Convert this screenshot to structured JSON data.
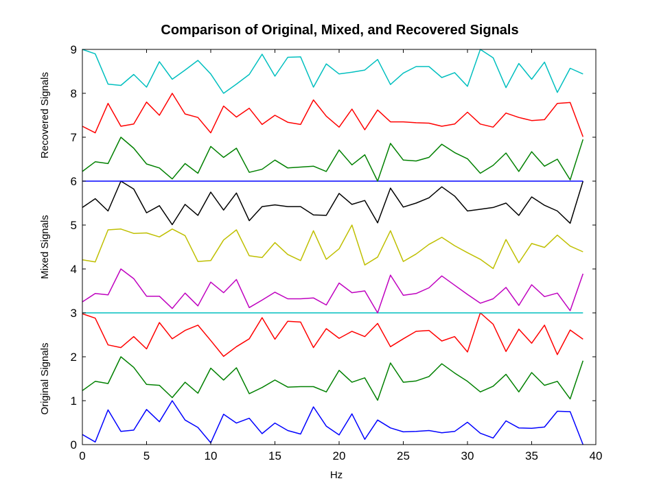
{
  "chart_data": {
    "type": "line",
    "title": "Comparison of Original, Mixed, and Recovered Signals",
    "xlabel": "Hz",
    "group_labels": [
      "Original Signals",
      "Mixed Signals",
      "Recovered Signals"
    ],
    "xlim": [
      0,
      40
    ],
    "ylim": [
      0,
      9
    ],
    "xticks": [
      0,
      5,
      10,
      15,
      20,
      25,
      30,
      35,
      40
    ],
    "yticks": [
      0,
      1,
      2,
      3,
      4,
      5,
      6,
      7,
      8,
      9
    ],
    "grid": false,
    "x": [
      0,
      1,
      2,
      3,
      4,
      5,
      6,
      7,
      8,
      9,
      10,
      11,
      12,
      13,
      14,
      15,
      16,
      17,
      18,
      19,
      20,
      21,
      22,
      23,
      24,
      25,
      26,
      27,
      28,
      29,
      30,
      31,
      32,
      33,
      34,
      35,
      36,
      37,
      38,
      39
    ],
    "series": [
      {
        "color": "#0000ff",
        "values": [
          0.23,
          0.06,
          0.79,
          0.3,
          0.33,
          0.8,
          0.52,
          1.0,
          0.56,
          0.39,
          0.04,
          0.69,
          0.49,
          0.6,
          0.25,
          0.49,
          0.32,
          0.24,
          0.86,
          0.42,
          0.22,
          0.7,
          0.12,
          0.56,
          0.38,
          0.29,
          0.3,
          0.32,
          0.27,
          0.3,
          0.51,
          0.26,
          0.15,
          0.54,
          0.38,
          0.37,
          0.4,
          0.76,
          0.75,
          0.0
        ]
      },
      {
        "color": "#008000",
        "values": [
          1.23,
          1.44,
          1.39,
          2.0,
          1.76,
          1.37,
          1.35,
          1.07,
          1.42,
          1.17,
          1.74,
          1.47,
          1.75,
          1.16,
          1.3,
          1.47,
          1.31,
          1.32,
          1.32,
          1.2,
          1.69,
          1.42,
          1.52,
          1.01,
          1.86,
          1.42,
          1.45,
          1.55,
          1.84,
          1.63,
          1.44,
          1.2,
          1.33,
          1.6,
          1.2,
          1.64,
          1.35,
          1.44,
          1.04,
          1.91
        ]
      },
      {
        "color": "#ff0000",
        "values": [
          2.98,
          2.88,
          2.27,
          2.21,
          2.46,
          2.18,
          2.78,
          2.41,
          2.6,
          2.72,
          2.37,
          2.01,
          2.23,
          2.41,
          2.89,
          2.4,
          2.81,
          2.79,
          2.21,
          2.64,
          2.42,
          2.58,
          2.46,
          2.76,
          2.23,
          2.41,
          2.58,
          2.6,
          2.36,
          2.46,
          2.11,
          3.0,
          2.74,
          2.12,
          2.63,
          2.31,
          2.72,
          2.05,
          2.61,
          2.4
        ]
      },
      {
        "color": "#00bfbf",
        "values": [
          3.0,
          3.0,
          3.0,
          3.0,
          3.0,
          3.0,
          3.0,
          3.0,
          3.0,
          3.0,
          3.0,
          3.0,
          3.0,
          3.0,
          3.0,
          3.0,
          3.0,
          3.0,
          3.0,
          3.0,
          3.0,
          3.0,
          3.0,
          3.0,
          3.0,
          3.0,
          3.0,
          3.0,
          3.0,
          3.0,
          3.0,
          3.0,
          3.0,
          3.0,
          3.0,
          3.0,
          3.0,
          3.0,
          3.0,
          3.0
        ]
      },
      {
        "color": "#bf00bf",
        "values": [
          3.25,
          3.44,
          3.41,
          4.0,
          3.78,
          3.38,
          3.38,
          3.1,
          3.45,
          3.16,
          3.7,
          3.46,
          3.76,
          3.12,
          3.29,
          3.47,
          3.32,
          3.32,
          3.34,
          3.18,
          3.68,
          3.46,
          3.5,
          3.0,
          3.86,
          3.4,
          3.44,
          3.57,
          3.84,
          3.63,
          3.42,
          3.22,
          3.32,
          3.58,
          3.17,
          3.64,
          3.37,
          3.45,
          3.05,
          3.89
        ]
      },
      {
        "color": "#bfbf00",
        "values": [
          4.21,
          4.16,
          4.89,
          4.91,
          4.81,
          4.82,
          4.73,
          4.91,
          4.76,
          4.17,
          4.19,
          4.66,
          4.89,
          4.3,
          4.26,
          4.6,
          4.33,
          4.19,
          4.87,
          4.22,
          4.46,
          5.0,
          4.09,
          4.27,
          4.87,
          4.17,
          4.34,
          4.56,
          4.72,
          4.53,
          4.37,
          4.22,
          4.01,
          4.67,
          4.14,
          4.58,
          4.49,
          4.77,
          4.52,
          4.39
        ]
      },
      {
        "color": "#000000",
        "values": [
          5.4,
          5.6,
          5.32,
          6.0,
          5.82,
          5.28,
          5.44,
          5.01,
          5.47,
          5.22,
          5.75,
          5.34,
          5.73,
          5.1,
          5.42,
          5.46,
          5.42,
          5.42,
          5.23,
          5.22,
          5.72,
          5.47,
          5.56,
          5.05,
          5.84,
          5.41,
          5.5,
          5.62,
          5.87,
          5.66,
          5.32,
          5.36,
          5.4,
          5.5,
          5.22,
          5.64,
          5.45,
          5.32,
          5.04,
          6.0
        ]
      },
      {
        "color": "#0000ff",
        "values": [
          6.0,
          6.0,
          6.0,
          6.0,
          6.0,
          6.0,
          6.0,
          6.0,
          6.0,
          6.0,
          6.0,
          6.0,
          6.0,
          6.0,
          6.0,
          6.0,
          6.0,
          6.0,
          6.0,
          6.0,
          6.0,
          6.0,
          6.0,
          6.0,
          6.0,
          6.0,
          6.0,
          6.0,
          6.0,
          6.0,
          6.0,
          6.0,
          6.0,
          6.0,
          6.0,
          6.0,
          6.0,
          6.0,
          6.0,
          6.0
        ]
      },
      {
        "color": "#008000",
        "values": [
          6.22,
          6.44,
          6.4,
          7.0,
          6.75,
          6.39,
          6.3,
          6.05,
          6.4,
          6.18,
          6.79,
          6.54,
          6.75,
          6.2,
          6.27,
          6.48,
          6.3,
          6.32,
          6.34,
          6.22,
          6.71,
          6.37,
          6.6,
          6.0,
          6.86,
          6.48,
          6.46,
          6.54,
          6.84,
          6.65,
          6.51,
          6.18,
          6.36,
          6.64,
          6.22,
          6.67,
          6.34,
          6.5,
          6.03,
          6.95
        ]
      },
      {
        "color": "#ff0000",
        "values": [
          7.25,
          7.1,
          7.77,
          7.25,
          7.3,
          7.8,
          7.5,
          8.0,
          7.53,
          7.45,
          7.1,
          7.71,
          7.46,
          7.66,
          7.29,
          7.5,
          7.34,
          7.29,
          7.85,
          7.48,
          7.23,
          7.64,
          7.17,
          7.62,
          7.35,
          7.35,
          7.33,
          7.32,
          7.25,
          7.3,
          7.57,
          7.3,
          7.23,
          7.55,
          7.45,
          7.38,
          7.4,
          7.77,
          7.79,
          7.01
        ]
      },
      {
        "color": "#00bfbf",
        "values": [
          9.0,
          8.9,
          8.21,
          8.18,
          8.43,
          8.14,
          8.72,
          8.32,
          8.53,
          8.75,
          8.44,
          8.0,
          8.21,
          8.43,
          8.89,
          8.39,
          8.82,
          8.83,
          8.14,
          8.67,
          8.44,
          8.48,
          8.53,
          8.77,
          8.2,
          8.46,
          8.61,
          8.61,
          8.36,
          8.47,
          8.16,
          9.0,
          8.81,
          8.13,
          8.68,
          8.32,
          8.71,
          8.02,
          8.57,
          8.44
        ]
      }
    ]
  }
}
